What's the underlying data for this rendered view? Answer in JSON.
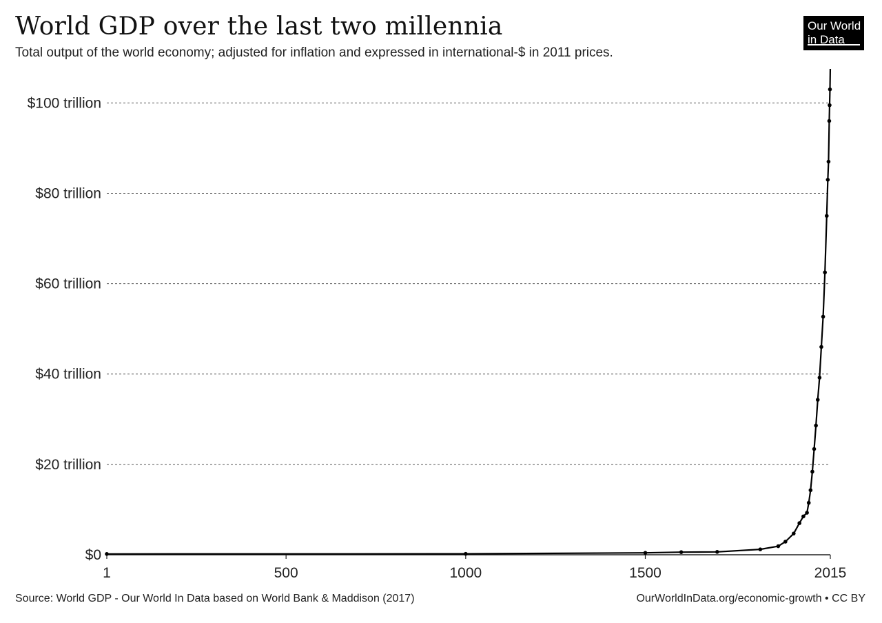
{
  "header": {
    "title": "World GDP over the last two millennia",
    "subtitle": "Total output of the world economy; adjusted for inflation and expressed in international-$ in 2011 prices.",
    "logo_line1": "Our World",
    "logo_line2": "in Data"
  },
  "footer": {
    "source": "Source: World GDP - Our World In Data based on World Bank & Maddison (2017)",
    "credit": "OurWorldInData.org/economic-growth • CC BY"
  },
  "chart_data": {
    "type": "line",
    "title": "World GDP over the last two millennia",
    "xlabel": "",
    "ylabel": "",
    "xlim": [
      1,
      2015
    ],
    "ylim": [
      0,
      106
    ],
    "grid": true,
    "x_ticks": [
      {
        "value": 1,
        "label": "1"
      },
      {
        "value": 500,
        "label": "500"
      },
      {
        "value": 1000,
        "label": "1000"
      },
      {
        "value": 1500,
        "label": "1500"
      },
      {
        "value": 2015,
        "label": "2015"
      }
    ],
    "y_ticks": [
      {
        "value": 0,
        "label": "$0"
      },
      {
        "value": 20,
        "label": "$20 trillion"
      },
      {
        "value": 40,
        "label": "$40 trillion"
      },
      {
        "value": 60,
        "label": "$60 trillion"
      },
      {
        "value": 80,
        "label": "$80 trillion"
      },
      {
        "value": 100,
        "label": "$100 trillion"
      }
    ],
    "series": [
      {
        "values_unit": "trillion international-$ (2011 prices)",
        "x": [
          1,
          1000,
          1500,
          1600,
          1700,
          1820,
          1870,
          1890,
          1913,
          1929,
          1940,
          1950,
          1955,
          1960,
          1965,
          1970,
          1975,
          1980,
          1985,
          1990,
          1995,
          2000,
          2005,
          2008,
          2010,
          2012,
          2013,
          2014,
          2015
        ],
        "y": [
          0.18,
          0.21,
          0.43,
          0.58,
          0.64,
          1.2,
          1.9,
          2.9,
          4.7,
          7.0,
          8.5,
          9.3,
          11.5,
          14.3,
          18.4,
          23.4,
          28.6,
          34.3,
          39.2,
          46.0,
          52.7,
          62.5,
          75.0,
          83.0,
          87.0,
          96.0,
          99.5,
          103.0,
          108.1
        ]
      }
    ]
  }
}
